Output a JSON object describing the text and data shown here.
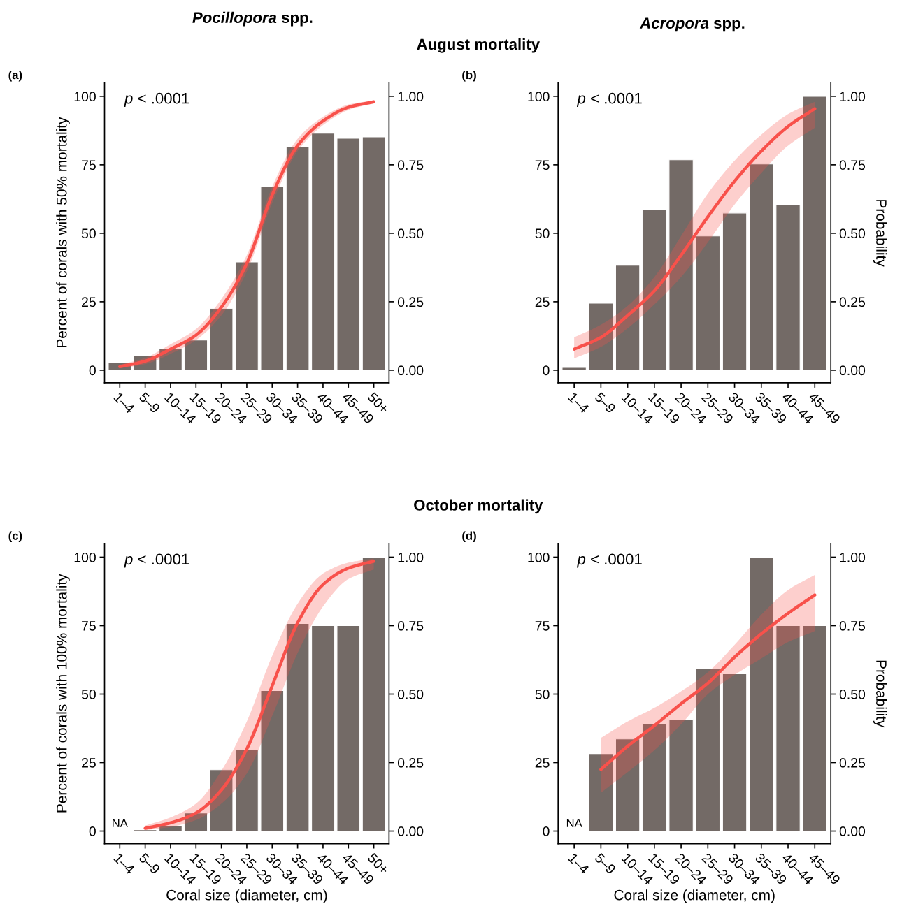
{
  "chart_data": [
    {
      "type": "bar",
      "title": "August mortality",
      "subtitle": "Pocillopora spp.",
      "ylabel": "Percent of corals with 50% mortality",
      "annotations": [
        "(a)",
        "p < .0001"
      ],
      "categories": [
        "1–4",
        "5–9",
        "10–14",
        "15–19",
        "20–24",
        "25–29",
        "30–34",
        "35–39",
        "40–44",
        "45–49",
        "50+"
      ],
      "series": [
        {
          "color": "#736a66",
          "values": [
            2.8,
            5.5,
            8,
            11,
            22.5,
            39.5,
            67,
            81.5,
            86.5,
            84.7,
            85.2
          ]
        },
        {
          "type": "line",
          "axis": "y2",
          "color": "#f8514b",
          "values": [
            0.013,
            0.033,
            0.077,
            0.128,
            0.23,
            0.39,
            0.64,
            0.82,
            0.91,
            0.96,
            0.98
          ],
          "lower": [
            0.007,
            0.022,
            0.06,
            0.11,
            0.2,
            0.36,
            0.61,
            0.8,
            0.895,
            0.95,
            0.975
          ],
          "upper": [
            0.02,
            0.045,
            0.095,
            0.15,
            0.26,
            0.42,
            0.67,
            0.845,
            0.925,
            0.97,
            0.985
          ]
        }
      ],
      "ylim": [
        -4.6,
        105
      ],
      "yticks": [
        0,
        25,
        50,
        75,
        100
      ],
      "y2lim": [
        -0.046,
        1.05
      ],
      "y2ticks": [
        {
          "value": 0,
          "label": "0.00"
        },
        {
          "value": 0.25,
          "label": "0.25"
        },
        {
          "value": 0.5,
          "label": "0.50"
        },
        {
          "value": 0.75,
          "label": "0.75"
        },
        {
          "value": 1,
          "label": "1.00"
        }
      ],
      "grid": false,
      "legend": false
    },
    {
      "type": "bar",
      "subtitle": "Acropora spp.",
      "y2label": "Probability",
      "annotations": [
        "(b)",
        "p < .0001"
      ],
      "categories": [
        "1–4",
        "5–9",
        "10–14",
        "15–19",
        "20–24",
        "25–29",
        "30–34",
        "35–39",
        "40–44",
        "45–49"
      ],
      "series": [
        {
          "color": "#736a66",
          "values": [
            1,
            24.5,
            38.3,
            58.6,
            76.8,
            49,
            57.4,
            75.3,
            60.4,
            100
          ]
        },
        {
          "type": "line",
          "axis": "y2",
          "color": "#f8514b",
          "values": [
            0.077,
            0.12,
            0.2,
            0.29,
            0.42,
            0.56,
            0.69,
            0.8,
            0.89,
            0.955
          ],
          "lower": [
            0.043,
            0.085,
            0.153,
            0.24,
            0.34,
            0.467,
            0.605,
            0.72,
            0.82,
            0.885
          ],
          "upper": [
            0.12,
            0.166,
            0.235,
            0.34,
            0.49,
            0.645,
            0.765,
            0.86,
            0.935,
            0.98
          ]
        }
      ],
      "ylim": [
        -4.6,
        105
      ],
      "yticks": [
        0,
        25,
        50,
        75,
        100
      ],
      "y2lim": [
        -0.046,
        1.05
      ],
      "y2ticks": [
        {
          "value": 0,
          "label": "0.00"
        },
        {
          "value": 0.25,
          "label": "0.25"
        },
        {
          "value": 0.5,
          "label": "0.50"
        },
        {
          "value": 0.75,
          "label": "0.75"
        },
        {
          "value": 1,
          "label": "1.00"
        }
      ],
      "grid": false,
      "legend": false
    },
    {
      "type": "bar",
      "title": "October mortality",
      "ylabel": "Percent of corals with 100% mortality",
      "xlabel": "Coral size (diameter, cm)",
      "annotations": [
        "(c)",
        "p < .0001",
        "NA"
      ],
      "categories": [
        "1–4",
        "5–9",
        "10–14",
        "15–19",
        "20–24",
        "25–29",
        "30–34",
        "35–39",
        "40–44",
        "45–49",
        "50+"
      ],
      "series": [
        {
          "color": "#736a66",
          "values": [
            null,
            0.5,
            1.8,
            6.6,
            22.4,
            29.6,
            51.3,
            75.8,
            75,
            75,
            100
          ]
        },
        {
          "type": "line",
          "axis": "y2",
          "color": "#f8514b",
          "values": [
            null,
            0.01,
            0.03,
            0.066,
            0.15,
            0.3,
            0.53,
            0.76,
            0.9,
            0.96,
            0.985
          ],
          "lower": [
            null,
            0.003,
            0.015,
            0.04,
            0.1,
            0.21,
            0.42,
            0.65,
            0.82,
            0.92,
            0.955
          ],
          "upper": [
            null,
            0.02,
            0.05,
            0.1,
            0.22,
            0.4,
            0.64,
            0.83,
            0.94,
            0.98,
            0.995
          ]
        }
      ],
      "ylim": [
        -4.6,
        105
      ],
      "yticks": [
        0,
        25,
        50,
        75,
        100
      ],
      "y2lim": [
        -0.046,
        1.05
      ],
      "y2ticks": [
        {
          "value": 0,
          "label": "0.00"
        },
        {
          "value": 0.25,
          "label": "0.25"
        },
        {
          "value": 0.5,
          "label": "0.50"
        },
        {
          "value": 0.75,
          "label": "0.75"
        },
        {
          "value": 1,
          "label": "1.00"
        }
      ],
      "grid": false,
      "legend": false
    },
    {
      "type": "bar",
      "xlabel": "Coral size (diameter, cm)",
      "y2label": "Probability",
      "annotations": [
        "(d)",
        "p < .0001",
        "NA"
      ],
      "categories": [
        "1–4",
        "5–9",
        "10–14",
        "15–19",
        "20–24",
        "25–29",
        "30–34",
        "35–39",
        "40–44",
        "45–49"
      ],
      "series": [
        {
          "color": "#736a66",
          "values": [
            null,
            28.3,
            33.6,
            39.3,
            40.8,
            59.4,
            57.4,
            100,
            75,
            75
          ]
        },
        {
          "type": "line",
          "axis": "y2",
          "color": "#f8514b",
          "values": [
            null,
            0.225,
            0.31,
            0.385,
            0.465,
            0.54,
            0.635,
            0.72,
            0.795,
            0.862
          ],
          "lower": [
            null,
            0.14,
            0.215,
            0.295,
            0.39,
            0.5,
            0.57,
            0.63,
            0.69,
            0.73
          ],
          "upper": [
            null,
            0.34,
            0.4,
            0.45,
            0.51,
            0.58,
            0.68,
            0.79,
            0.88,
            0.935
          ]
        }
      ],
      "ylim": [
        -4.6,
        105
      ],
      "yticks": [
        0,
        25,
        50,
        75,
        100
      ],
      "y2lim": [
        -0.046,
        1.05
      ],
      "y2ticks": [
        {
          "value": 0,
          "label": "0.00"
        },
        {
          "value": 0.25,
          "label": "0.25"
        },
        {
          "value": 0.5,
          "label": "0.50"
        },
        {
          "value": 0.75,
          "label": "0.75"
        },
        {
          "value": 1,
          "label": "1.00"
        }
      ],
      "grid": false,
      "legend": false
    }
  ]
}
